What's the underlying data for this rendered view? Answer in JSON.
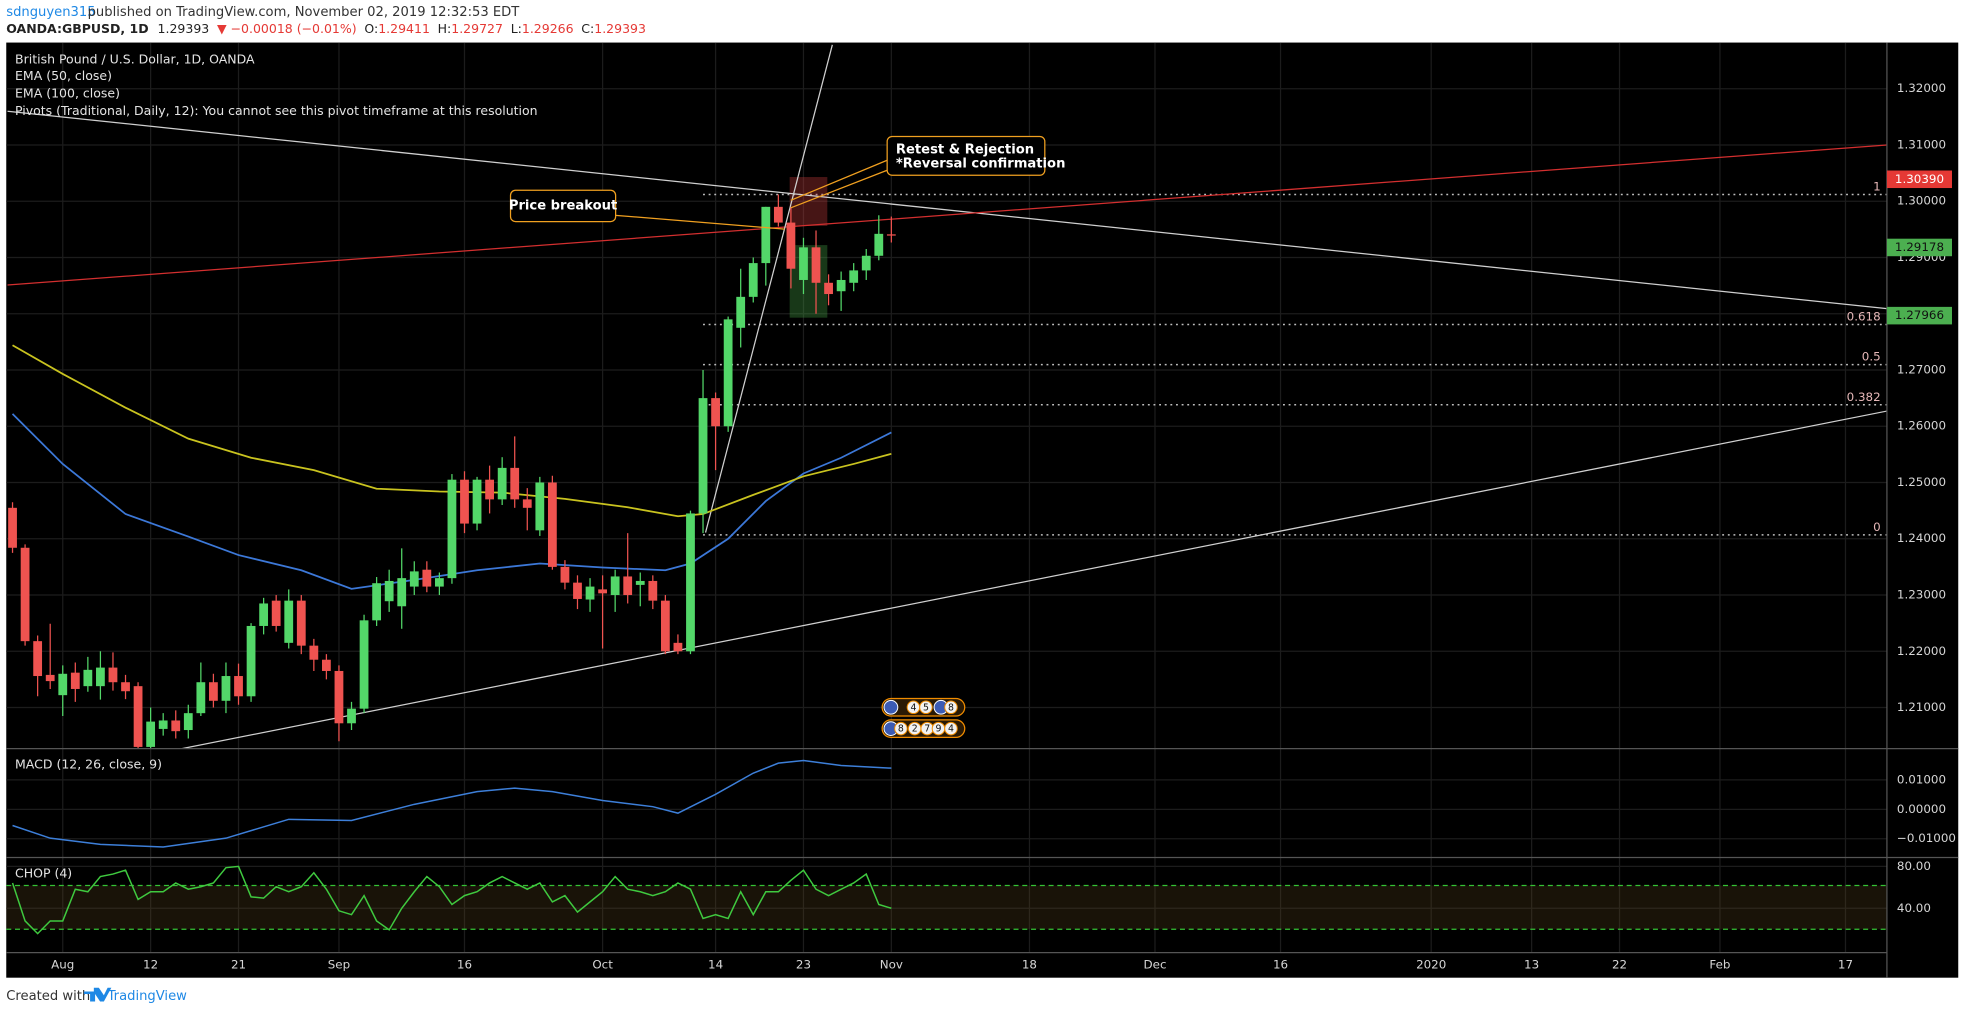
{
  "header": {
    "author": "sdnguyen315",
    "published": "published on TradingView.com, November 02, 2019 12:32:53 EDT",
    "symbol": "OANDA:GBPUSD, 1D",
    "change": "▼ −0.00018 (−0.01%)",
    "ohlc_labels": [
      "O:",
      "H:",
      "L:",
      "C:"
    ]
  },
  "footer": {
    "created": "Created with",
    "brand": "TradingView"
  },
  "chart_data": [
    {
      "type": "candlestick",
      "title": "British Pound / U.S. Dollar, 1D, OANDA",
      "note": "Pivots (Traditional, Daily, 12): You cannot see this pivot timeframe at this resolution",
      "up_color": "#53d769",
      "down_color": "#ef5350",
      "x": [
        -47,
        -46,
        -45,
        -44,
        -43,
        -42,
        -41,
        -40,
        -39,
        -38,
        -37,
        -36,
        -35,
        -34,
        -33,
        -32,
        -31,
        -30,
        -29,
        -28,
        -27,
        -26,
        -25,
        -24,
        -23,
        -22,
        -21,
        -20,
        -19,
        -18,
        -17,
        -16,
        -15,
        -14,
        -13,
        -12,
        -11,
        -10,
        -9,
        -8,
        -7,
        -6,
        -5,
        -4,
        -3,
        -2,
        -1,
        0,
        1,
        2,
        3,
        4,
        5,
        6,
        7,
        8,
        9,
        10,
        11,
        12,
        13,
        14,
        15,
        16,
        17,
        18,
        19,
        20,
        21,
        22,
        23
      ],
      "open": [
        1.2455,
        1.2384,
        1.2218,
        1.2158,
        1.2122,
        1.2162,
        1.2138,
        1.2138,
        1.2171,
        1.2145,
        1.2138,
        1.203,
        1.2062,
        1.2077,
        1.206,
        1.209,
        1.2145,
        1.2112,
        1.2156,
        1.212,
        1.2245,
        1.229,
        1.2215,
        1.229,
        1.221,
        1.2185,
        1.2165,
        1.2072,
        1.2098,
        1.2255,
        1.2289,
        1.228,
        1.2315,
        1.2345,
        1.2315,
        1.233,
        1.2505,
        1.2427,
        1.2505,
        1.247,
        1.2526,
        1.247,
        1.2415,
        1.25,
        1.235,
        1.2322,
        1.2292,
        1.231,
        1.23,
        1.2333,
        1.2318,
        1.2325,
        1.229,
        1.2215,
        1.22,
        1.2445,
        1.265,
        1.26,
        1.2775,
        1.283,
        1.289,
        1.299,
        1.2962,
        1.286,
        1.2918,
        1.2855,
        1.284,
        1.2855,
        1.2877,
        1.2903,
        1.29411
      ],
      "high": [
        1.2465,
        1.239,
        1.2228,
        1.2249,
        1.2175,
        1.218,
        1.219,
        1.22,
        1.2198,
        1.2158,
        1.2145,
        1.21,
        1.209,
        1.2095,
        1.2105,
        1.218,
        1.216,
        1.218,
        1.2178,
        1.225,
        1.2295,
        1.23,
        1.231,
        1.23,
        1.2222,
        1.2195,
        1.2175,
        1.211,
        1.2265,
        1.2332,
        1.2345,
        1.2383,
        1.236,
        1.236,
        1.234,
        1.2515,
        1.252,
        1.251,
        1.253,
        1.2545,
        1.2582,
        1.249,
        1.251,
        1.2512,
        1.2362,
        1.2335,
        1.233,
        1.2335,
        1.2345,
        1.241,
        1.234,
        1.2335,
        1.23,
        1.223,
        1.245,
        1.27,
        1.266,
        1.2795,
        1.288,
        1.29,
        1.299,
        1.3012,
        1.299,
        1.2935,
        1.2948,
        1.287,
        1.2875,
        1.289,
        1.2915,
        1.2975,
        1.29727
      ],
      "low": [
        1.2375,
        1.221,
        1.212,
        1.2133,
        1.2085,
        1.211,
        1.2128,
        1.2114,
        1.213,
        1.2115,
        1.2015,
        1.2015,
        1.205,
        1.2045,
        1.2045,
        1.2085,
        1.21,
        1.209,
        1.2105,
        1.211,
        1.223,
        1.2235,
        1.2205,
        1.2195,
        1.2165,
        1.215,
        1.204,
        1.206,
        1.209,
        1.2245,
        1.227,
        1.224,
        1.23,
        1.2305,
        1.23,
        1.232,
        1.241,
        1.2415,
        1.2445,
        1.246,
        1.2455,
        1.2415,
        1.2405,
        1.2345,
        1.231,
        1.2275,
        1.227,
        1.2205,
        1.227,
        1.2285,
        1.228,
        1.2275,
        1.2195,
        1.2195,
        1.2195,
        1.241,
        1.2522,
        1.259,
        1.274,
        1.282,
        1.285,
        1.2955,
        1.2845,
        1.2835,
        1.28,
        1.2815,
        1.2805,
        1.284,
        1.286,
        1.2895,
        1.29266
      ],
      "close": [
        1.2384,
        1.2218,
        1.2156,
        1.2147,
        1.216,
        1.2133,
        1.2167,
        1.2171,
        1.2145,
        1.2129,
        1.203,
        1.2075,
        1.2077,
        1.2058,
        1.209,
        1.2145,
        1.2112,
        1.2156,
        1.212,
        1.2245,
        1.2285,
        1.2245,
        1.229,
        1.221,
        1.2185,
        1.2165,
        1.2072,
        1.2098,
        1.2255,
        1.2321,
        1.2325,
        1.233,
        1.2342,
        1.2315,
        1.233,
        1.2505,
        1.2427,
        1.2505,
        1.247,
        1.2526,
        1.247,
        1.2455,
        1.25,
        1.235,
        1.2322,
        1.2293,
        1.2315,
        1.2303,
        1.2333,
        1.23,
        1.2325,
        1.229,
        1.22,
        1.22,
        1.2445,
        1.265,
        1.26,
        1.279,
        1.283,
        1.289,
        1.299,
        1.2962,
        1.288,
        1.2918,
        1.2855,
        1.2835,
        1.286,
        1.2877,
        1.2903,
        1.2942,
        1.29393
      ],
      "series": [
        {
          "name": "EMA (50, close)",
          "color": "#3c78d8",
          "x": [
            -47,
            -43,
            -38,
            -33,
            -29,
            -24,
            -20,
            -15,
            -10,
            -5,
            0,
            5,
            7,
            10,
            13,
            16,
            19,
            23
          ],
          "values": [
            1.2622,
            1.2533,
            1.2444,
            1.2404,
            1.2371,
            1.2344,
            1.2311,
            1.2327,
            1.2344,
            1.2356,
            1.2349,
            1.2344,
            1.2356,
            1.24,
            1.2467,
            1.2516,
            1.2544,
            1.2589
          ]
        },
        {
          "name": "EMA (100, close)",
          "color": "#c9c31f",
          "x": [
            -47,
            -43,
            -38,
            -33,
            -28,
            -23,
            -18,
            -13,
            -8,
            -3,
            2,
            6,
            8,
            12,
            16,
            20,
            23
          ],
          "values": [
            1.2744,
            1.2693,
            1.2633,
            1.2578,
            1.2544,
            1.2522,
            1.2489,
            1.2484,
            1.2482,
            1.2471,
            1.2456,
            1.244,
            1.2444,
            1.2478,
            1.2511,
            1.2533,
            1.2551
          ]
        }
      ],
      "xlim": [
        -47.5,
        102.3
      ],
      "xticks": [
        {
          "value": -43,
          "label": "Aug"
        },
        {
          "value": -36,
          "label": "12"
        },
        {
          "value": -29,
          "label": "21"
        },
        {
          "value": -21,
          "label": "Sep"
        },
        {
          "value": -11,
          "label": "16"
        },
        {
          "value": 0,
          "label": "Oct"
        },
        {
          "value": 9,
          "label": "14"
        },
        {
          "value": 16,
          "label": "23"
        },
        {
          "value": 23,
          "label": "Nov"
        },
        {
          "value": 34,
          "label": "18"
        },
        {
          "value": 44,
          "label": "Dec"
        },
        {
          "value": 54,
          "label": "16"
        },
        {
          "value": 66,
          "label": "2020"
        },
        {
          "value": 74,
          "label": "13"
        },
        {
          "value": 81,
          "label": "22"
        },
        {
          "value": 89,
          "label": "Feb"
        },
        {
          "value": 99,
          "label": "17"
        }
      ],
      "ylim": [
        1.2027,
        1.3282
      ],
      "yticks": [
        {
          "value": 1.21,
          "label": "1.21000"
        },
        {
          "value": 1.22,
          "label": "1.22000"
        },
        {
          "value": 1.23,
          "label": "1.23000"
        },
        {
          "value": 1.24,
          "label": "1.24000"
        },
        {
          "value": 1.25,
          "label": "1.25000"
        },
        {
          "value": 1.26,
          "label": "1.26000"
        },
        {
          "value": 1.27,
          "label": "1.27000"
        },
        {
          "value": 1.28,
          "label": "1.28000"
        },
        {
          "value": 1.29,
          "label": "1.29000"
        },
        {
          "value": 1.3,
          "label": "1.30000"
        },
        {
          "value": 1.31,
          "label": "1.31000"
        },
        {
          "value": 1.32,
          "label": "1.32000"
        }
      ],
      "grid": true,
      "price_labels": [
        {
          "value": 1.3039,
          "label": "1.30390",
          "color": "#e53935",
          "text_color": "#ffffff"
        },
        {
          "value": 1.29178,
          "label": "1.29178",
          "color": "#4caf50",
          "text_color": "#111111"
        },
        {
          "value": 1.27966,
          "label": "1.27966",
          "color": "#4caf50",
          "text_color": "#111111"
        }
      ],
      "fib": {
        "levels": [
          1,
          0.618,
          0.5,
          0.382,
          0
        ],
        "low": 1.2407,
        "high": 1.3012,
        "start": 8,
        "color": "#bdbdbd",
        "label_color": "#e6b8b8"
      },
      "trendlines": [
        {
          "x": [
            -47.4,
            102.3
          ],
          "y": [
            1.316,
            1.2809
          ],
          "color": "#d0d0d0"
        },
        {
          "x": [
            -47.4,
            102.3
          ],
          "y": [
            1.2851,
            1.31
          ],
          "color": "#d32f2f"
        },
        {
          "x": [
            -33.5,
            102.3
          ],
          "y": [
            1.2027,
            1.2627
          ],
          "color": "#d0d0d0"
        },
        {
          "x": [
            8.2,
            18.3
          ],
          "y": [
            1.2411,
            1.3278
          ],
          "color": "#d0d0d0"
        }
      ],
      "boxes": [
        {
          "x": [
            14.9,
            17.9
          ],
          "y": [
            1.2956,
            1.3043
          ],
          "color": "rgba(200,60,60,0.35)"
        },
        {
          "x": [
            14.9,
            17.9
          ],
          "y": [
            1.2793,
            1.2922
          ],
          "color": "rgba(70,160,70,0.35)"
        }
      ],
      "annotations": [
        "Price breakout",
        "Retest & Rejection",
        "*Reversal confirmation"
      ],
      "events": [
        [
          4,
          5,
          8
        ],
        [
          8,
          2,
          7,
          9,
          4
        ]
      ]
    },
    {
      "type": "line",
      "title": "MACD (12, 26, close, 9)",
      "color": "#3d7fd9",
      "x": [
        -47,
        -44,
        -40,
        -35,
        -30,
        -25,
        -20,
        -15,
        -10,
        -7,
        -4,
        0,
        4,
        6,
        9,
        12,
        14,
        16,
        19,
        23
      ],
      "values": [
        -0.0055,
        -0.0098,
        -0.0119,
        -0.0128,
        -0.0098,
        -0.0034,
        -0.0038,
        0.0017,
        0.006,
        0.0072,
        0.006,
        0.003,
        0.0009,
        -0.0013,
        0.0051,
        0.0123,
        0.0157,
        0.0166,
        0.0149,
        0.014
      ],
      "ylim": [
        -0.01638,
        0.02064
      ],
      "yticks": [
        {
          "value": -0.01,
          "label": "−0.01000"
        },
        {
          "value": 0,
          "label": "0.00000"
        },
        {
          "value": 0.01,
          "label": "0.01000"
        }
      ]
    },
    {
      "type": "line",
      "title": "CHOP (4)",
      "color": "#3fc93f",
      "x": [
        -47,
        -46,
        -45,
        -44,
        -43,
        -42,
        -41,
        -40,
        -39,
        -38,
        -37,
        -36,
        -35,
        -34,
        -33,
        -32,
        -31,
        -30,
        -29,
        -28,
        -27,
        -26,
        -25,
        -24,
        -23,
        -22,
        -21,
        -20,
        -19,
        -18,
        -17,
        -16,
        -15,
        -14,
        -13,
        -12,
        -11,
        -10,
        -9,
        -8,
        -7,
        -6,
        -5,
        -4,
        -3,
        -2,
        -1,
        0,
        1,
        2,
        3,
        4,
        5,
        6,
        7,
        8,
        9,
        10,
        11,
        12,
        13,
        14,
        15,
        16,
        17,
        18,
        19,
        20,
        21,
        22,
        23
      ],
      "values": [
        64.2,
        27.9,
        15.8,
        27.9,
        27.9,
        58.2,
        55.8,
        70.3,
        72.7,
        76.4,
        48.5,
        55.8,
        55.8,
        64.2,
        58.2,
        60.6,
        64.2,
        78.8,
        80,
        50.9,
        49.7,
        60.6,
        55.8,
        60.6,
        73.9,
        58.2,
        37.6,
        33.9,
        52.1,
        27.9,
        19.4,
        40,
        55.8,
        70.3,
        60.6,
        43.6,
        52.1,
        55.8,
        64.2,
        70.3,
        64.2,
        58.2,
        64.2,
        46.1,
        52.1,
        36.4,
        46.1,
        55.8,
        70.3,
        58.2,
        55.8,
        52.1,
        55.8,
        64.2,
        58.2,
        30.3,
        33.9,
        30.3,
        55.8,
        33.9,
        55.8,
        55.8,
        66.7,
        76.4,
        58.2,
        52.1,
        58.2,
        64.2,
        72.7,
        43.6,
        40
      ],
      "ylim": [
        -2.4,
        88.5
      ],
      "yticks": [
        {
          "value": 40,
          "label": "40.00"
        },
        {
          "value": 80,
          "label": "80.00"
        }
      ],
      "bands": [
        61.8,
        20
      ],
      "band_color": "#35c235"
    }
  ]
}
